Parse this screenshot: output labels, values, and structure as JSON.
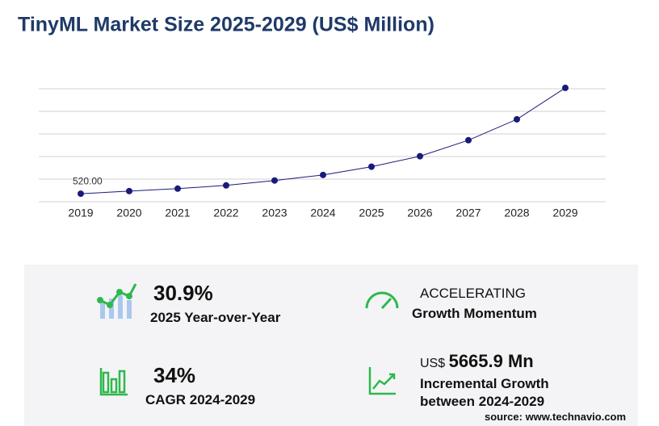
{
  "chart_data": {
    "type": "line",
    "title": "TinyML Market Size 2025-2029 (US$ Million)",
    "categories": [
      "2019",
      "2020",
      "2021",
      "2022",
      "2023",
      "2024",
      "2025",
      "2026",
      "2027",
      "2028",
      "2029"
    ],
    "values": [
      520,
      690,
      850,
      1060,
      1380,
      1740,
      2278,
      2960,
      4000,
      5360,
      7406
    ],
    "value_labels": [
      "520.00",
      null,
      null,
      null,
      null,
      null,
      null,
      null,
      null,
      null,
      null
    ],
    "color": "#1a1a7a",
    "ylim": [
      0,
      7350
    ],
    "grid": true
  },
  "stats": [
    {
      "value": "30.9%",
      "label": "2025 Year-over-Year"
    },
    {
      "value": "ACCELERATING",
      "label": "Growth Momentum"
    },
    {
      "value": "34%",
      "label": "CAGR 2024-2029"
    },
    {
      "prefix": "US$",
      "value": "5665.9 Mn",
      "label": "Incremental Growth",
      "label2": "between 2024-2029"
    }
  ],
  "source": "source: www.technavio.com"
}
